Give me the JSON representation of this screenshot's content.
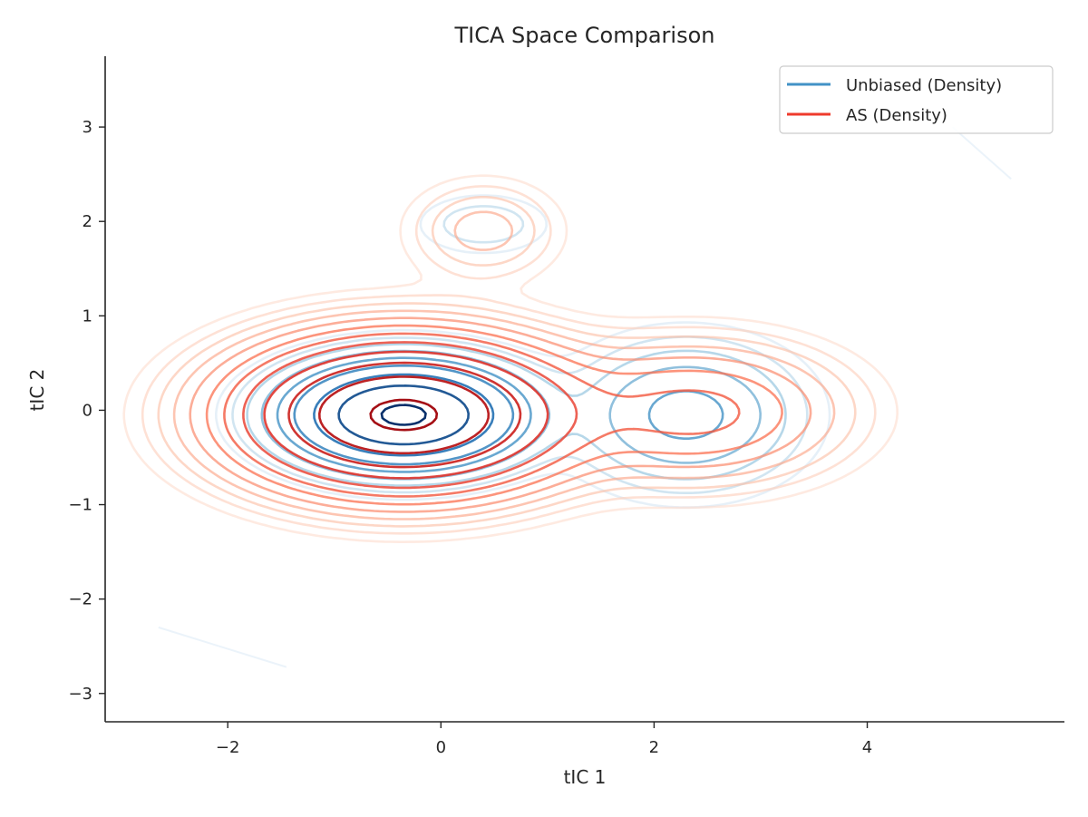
{
  "chart_data": {
    "type": "contour",
    "title": "TICA Space Comparison",
    "xlabel": "tIC 1",
    "ylabel": "tIC 2",
    "xlim": [
      -3.15,
      5.85
    ],
    "ylim": [
      -3.3,
      3.75
    ],
    "xticks": [
      -2,
      0,
      2,
      4
    ],
    "yticks": [
      -3,
      -2,
      -1,
      0,
      1,
      2,
      3
    ],
    "xtick_labels": [
      "−2",
      "0",
      "2",
      "4"
    ],
    "ytick_labels": [
      "−3",
      "−2",
      "−1",
      "0",
      "1",
      "2",
      "3"
    ],
    "grid": false,
    "legend_position": "top-right",
    "series": [
      {
        "name": "Unbiased (Density)",
        "color": "#4292c6",
        "levels": 9,
        "components": [
          {
            "mx": -0.35,
            "my": -0.05,
            "sx": 0.55,
            "sy": 0.28,
            "w": 1.0
          },
          {
            "mx": 2.3,
            "my": -0.05,
            "sx": 0.55,
            "sy": 0.4,
            "w": 0.12
          },
          {
            "mx": 0.4,
            "my": 1.97,
            "sx": 0.35,
            "sy": 0.18,
            "w": 0.025
          }
        ],
        "strays": [
          {
            "from": [
              -2.65,
              -2.3
            ],
            "to": [
              -1.45,
              -2.72
            ]
          },
          {
            "from": [
              4.8,
              3.0
            ],
            "to": [
              5.35,
              2.45
            ]
          }
        ]
      },
      {
        "name": "AS (Density)",
        "color": "#ef3b2c",
        "levels": 12,
        "components": [
          {
            "mx": -0.35,
            "my": -0.05,
            "sx": 0.82,
            "sy": 0.42,
            "w": 1.0
          },
          {
            "mx": 2.4,
            "my": -0.02,
            "sx": 0.75,
            "sy": 0.4,
            "w": 0.14
          },
          {
            "mx": 0.4,
            "my": 1.9,
            "sx": 0.4,
            "sy": 0.3,
            "w": 0.04
          }
        ],
        "strays": []
      }
    ]
  }
}
